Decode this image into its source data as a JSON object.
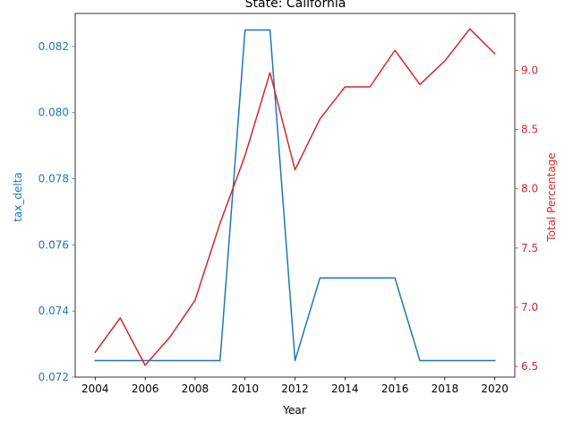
{
  "chart_data": {
    "type": "line",
    "title": "State: California",
    "xlabel": "Year",
    "ylabel_left": "tax_delta",
    "ylabel_right": "Total Percentage",
    "xlim": [
      2003.2,
      2020.8
    ],
    "ylim_left": [
      0.072,
      0.083
    ],
    "ylim_right": [
      6.41,
      9.48
    ],
    "x_ticks": [
      "2004",
      "2006",
      "2008",
      "2010",
      "2012",
      "2014",
      "2016",
      "2018",
      "2020"
    ],
    "y_left_ticks": [
      "0.072",
      "0.074",
      "0.076",
      "0.078",
      "0.080",
      "0.082"
    ],
    "y_right_ticks": [
      "6.5",
      "7.0",
      "7.5",
      "8.0",
      "8.5",
      "9.0"
    ],
    "colors": {
      "left": "#1f77b4",
      "right": "#d62728"
    },
    "x": [
      2004,
      2005,
      2006,
      2007,
      2008,
      2009,
      2010,
      2011,
      2012,
      2013,
      2014,
      2015,
      2016,
      2017,
      2018,
      2019,
      2020
    ],
    "series": [
      {
        "axis": "left",
        "values": [
          0.0725,
          0.0725,
          0.0725,
          0.0725,
          0.0725,
          0.0725,
          0.0825,
          0.0825,
          0.0725,
          0.075,
          0.075,
          0.075,
          0.075,
          0.0725,
          0.0725,
          0.0725,
          0.0725
        ]
      },
      {
        "axis": "right",
        "values": [
          6.62,
          6.91,
          6.51,
          6.75,
          7.06,
          7.71,
          8.28,
          8.98,
          8.16,
          8.59,
          8.86,
          8.86,
          9.17,
          8.88,
          9.08,
          9.35,
          9.14
        ]
      }
    ]
  }
}
